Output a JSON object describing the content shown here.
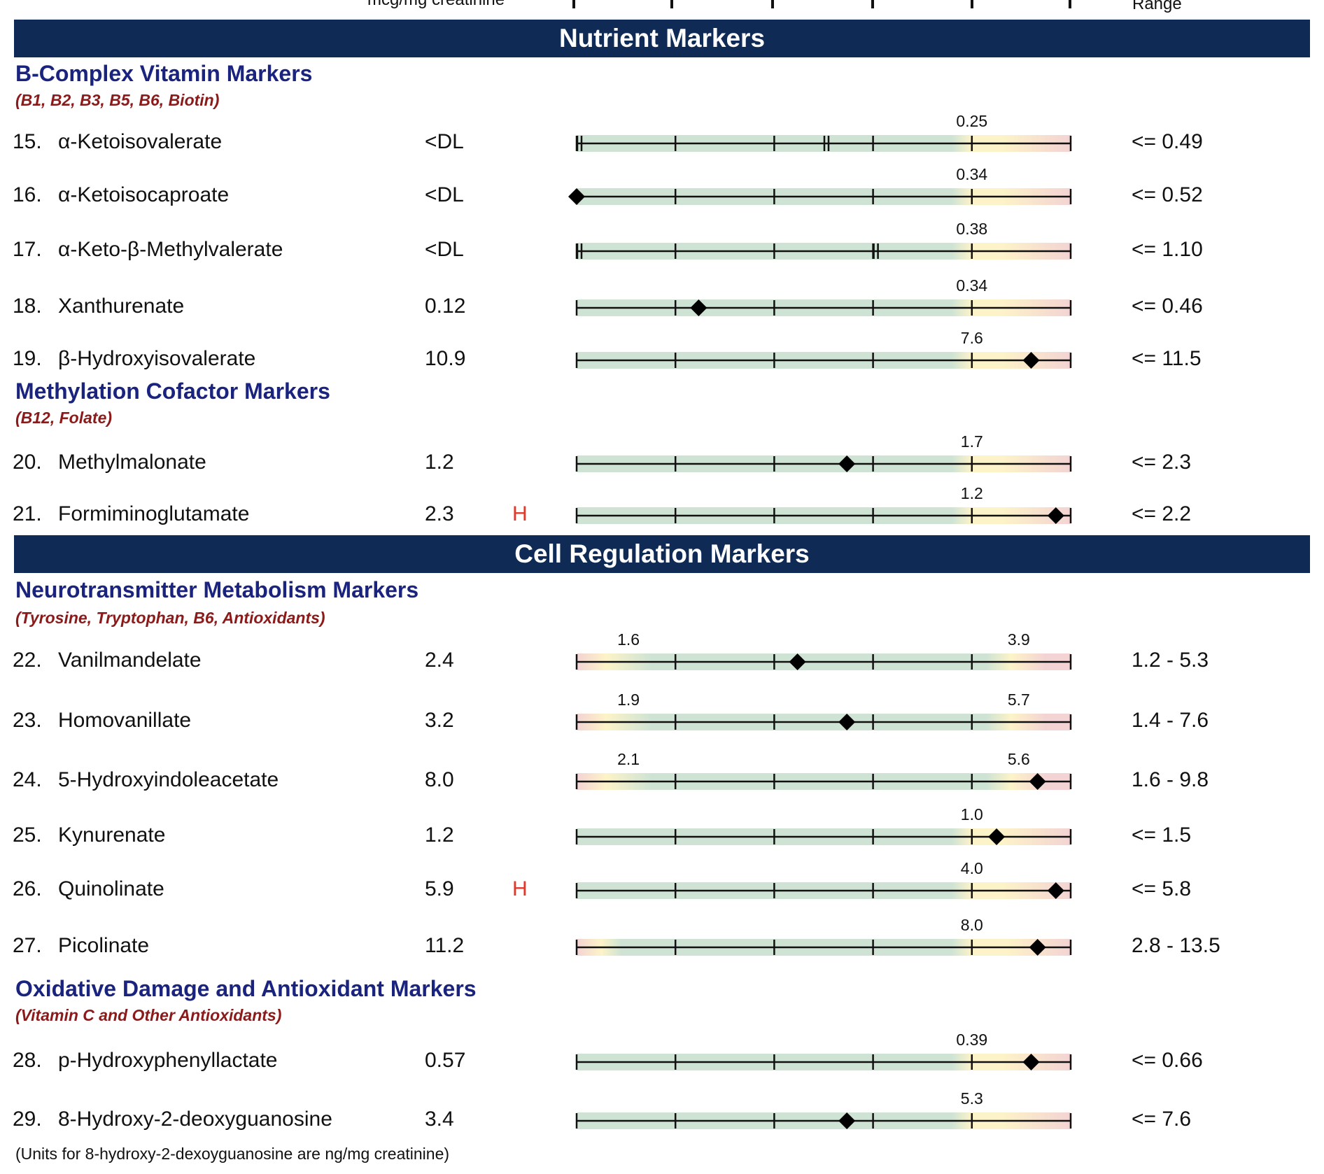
{
  "header": {
    "units_label": "mcg/mg creatinine",
    "range_label": "Range"
  },
  "colors": {
    "band": "#0e2a55",
    "green": "#cfe3d4",
    "yellow": "#fdf3c8",
    "red": "#f3d3d3",
    "flag": "#e0392b"
  },
  "sections": [
    {
      "title": "Nutrient Markers",
      "groups": [
        {
          "title": "B-Complex Vitamin Markers",
          "subtitle": "(B1, B2, B3, B5, B6, Biotin)",
          "markers": [
            {
              "num": "15.",
              "name": "α-Ketoisovalerate",
              "value": "<DL",
              "flag": "",
              "range": "<= 0.49",
              "ref_labels": [
                "0.25"
              ],
              "type": "upper",
              "marker_pos": null,
              "dl_break_pos": 0.5
            },
            {
              "num": "16.",
              "name": "α-Ketoisocaproate",
              "value": "<DL",
              "flag": "",
              "range": "<= 0.52",
              "ref_labels": [
                "0.34"
              ],
              "type": "upper",
              "marker_pos": 0.0,
              "dl_break_pos": null
            },
            {
              "num": "17.",
              "name": "α-Keto-β-Methylvalerate",
              "value": "<DL",
              "flag": "",
              "range": "<= 1.10",
              "ref_labels": [
                "0.38"
              ],
              "type": "upper",
              "marker_pos": null,
              "dl_break_pos": 0.6
            },
            {
              "num": "18.",
              "name": "Xanthurenate",
              "value": "0.12",
              "flag": "",
              "range": "<= 0.46",
              "ref_labels": [
                "0.34"
              ],
              "type": "upper",
              "marker_pos": 0.247,
              "dl_break_pos": null
            },
            {
              "num": "19.",
              "name": "β-Hydroxyisovalerate",
              "value": "10.9",
              "flag": "",
              "range": "<= 11.5",
              "ref_labels": [
                "7.6"
              ],
              "type": "upper",
              "marker_pos": 0.92,
              "dl_break_pos": null
            }
          ]
        },
        {
          "title": "Methylation Cofactor Markers",
          "subtitle": "(B12, Folate)",
          "markers": [
            {
              "num": "20.",
              "name": "Methylmalonate",
              "value": "1.2",
              "flag": "",
              "range": "<= 2.3",
              "ref_labels": [
                "1.7"
              ],
              "type": "upper",
              "marker_pos": 0.547,
              "dl_break_pos": null
            },
            {
              "num": "21.",
              "name": "Formiminoglutamate",
              "value": "2.3",
              "flag": "H",
              "range": "<= 2.2",
              "ref_labels": [
                "1.2"
              ],
              "type": "upper",
              "marker_pos": 0.97,
              "dl_break_pos": null
            }
          ]
        }
      ]
    },
    {
      "title": "Cell Regulation Markers",
      "groups": [
        {
          "title": "Neurotransmitter Metabolism Markers",
          "subtitle": "(Tyrosine, Tryptophan, B6, Antioxidants)",
          "markers": [
            {
              "num": "22.",
              "name": "Vanilmandelate",
              "value": "2.4",
              "flag": "",
              "range": "1.2 - 5.3",
              "ref_labels": [
                "1.6",
                "3.9"
              ],
              "type": "range",
              "marker_pos": 0.447,
              "dl_break_pos": null
            },
            {
              "num": "23.",
              "name": "Homovanillate",
              "value": "3.2",
              "flag": "",
              "range": "1.4 - 7.6",
              "ref_labels": [
                "1.9",
                "5.7"
              ],
              "type": "range",
              "marker_pos": 0.547,
              "dl_break_pos": null
            },
            {
              "num": "24.",
              "name": "5-Hydroxyindoleacetate",
              "value": "8.0",
              "flag": "",
              "range": "1.6 - 9.8",
              "ref_labels": [
                "2.1",
                "5.6"
              ],
              "type": "range",
              "marker_pos": 0.933,
              "dl_break_pos": null
            },
            {
              "num": "25.",
              "name": "Kynurenate",
              "value": "1.2",
              "flag": "",
              "range": "<= 1.5",
              "ref_labels": [
                "1.0"
              ],
              "type": "upper",
              "marker_pos": 0.85,
              "dl_break_pos": null
            },
            {
              "num": "26.",
              "name": "Quinolinate",
              "value": "5.9",
              "flag": "H",
              "range": "<= 5.8",
              "ref_labels": [
                "4.0"
              ],
              "type": "upper",
              "marker_pos": 0.97,
              "dl_break_pos": null
            },
            {
              "num": "27.",
              "name": "Picolinate",
              "value": "11.2",
              "flag": "",
              "range": "2.8 - 13.5",
              "ref_labels": [
                "8.0"
              ],
              "type": "range_single",
              "marker_pos": 0.933,
              "dl_break_pos": null
            }
          ]
        },
        {
          "title": "Oxidative Damage and Antioxidant Markers",
          "subtitle": "(Vitamin C and Other Antioxidants)",
          "markers": [
            {
              "num": "28.",
              "name": "p-Hydroxyphenyllactate",
              "value": "0.57",
              "flag": "",
              "range": "<= 0.66",
              "ref_labels": [
                "0.39"
              ],
              "type": "upper",
              "marker_pos": 0.92,
              "dl_break_pos": null
            },
            {
              "num": "29.",
              "name": "8-Hydroxy-2-deoxyguanosine",
              "value": "3.4",
              "flag": "",
              "range": "<= 7.6",
              "ref_labels": [
                "5.3"
              ],
              "type": "upper",
              "marker_pos": 0.547,
              "dl_break_pos": null
            }
          ]
        }
      ]
    }
  ],
  "footnote": "(Units for 8-hydroxy-2-dexoyguanosine are ng/mg creatinine)"
}
